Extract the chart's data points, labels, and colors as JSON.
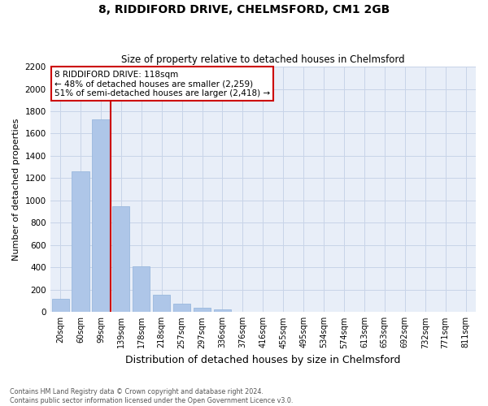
{
  "title": "8, RIDDIFORD DRIVE, CHELMSFORD, CM1 2GB",
  "subtitle": "Size of property relative to detached houses in Chelmsford",
  "xlabel": "Distribution of detached houses by size in Chelmsford",
  "ylabel": "Number of detached properties",
  "categories": [
    "20sqm",
    "60sqm",
    "99sqm",
    "139sqm",
    "178sqm",
    "218sqm",
    "257sqm",
    "297sqm",
    "336sqm",
    "376sqm",
    "416sqm",
    "455sqm",
    "495sqm",
    "534sqm",
    "574sqm",
    "613sqm",
    "653sqm",
    "692sqm",
    "732sqm",
    "771sqm",
    "811sqm"
  ],
  "values": [
    120,
    1260,
    1730,
    950,
    410,
    155,
    75,
    40,
    25,
    0,
    0,
    0,
    0,
    0,
    0,
    0,
    0,
    0,
    0,
    0,
    0
  ],
  "bar_color": "#aec6e8",
  "bar_edge_color": "#9ab8de",
  "grid_color": "#c8d4e8",
  "background_color": "#e8eef8",
  "annotation_title": "8 RIDDIFORD DRIVE: 118sqm",
  "annotation_line1": "← 48% of detached houses are smaller (2,259)",
  "annotation_line2": "51% of semi-detached houses are larger (2,418) →",
  "annotation_box_color": "#cc0000",
  "ylim": [
    0,
    2200
  ],
  "yticks": [
    0,
    200,
    400,
    600,
    800,
    1000,
    1200,
    1400,
    1600,
    1800,
    2000,
    2200
  ],
  "footer_line1": "Contains HM Land Registry data © Crown copyright and database right 2024.",
  "footer_line2": "Contains public sector information licensed under the Open Government Licence v3.0."
}
